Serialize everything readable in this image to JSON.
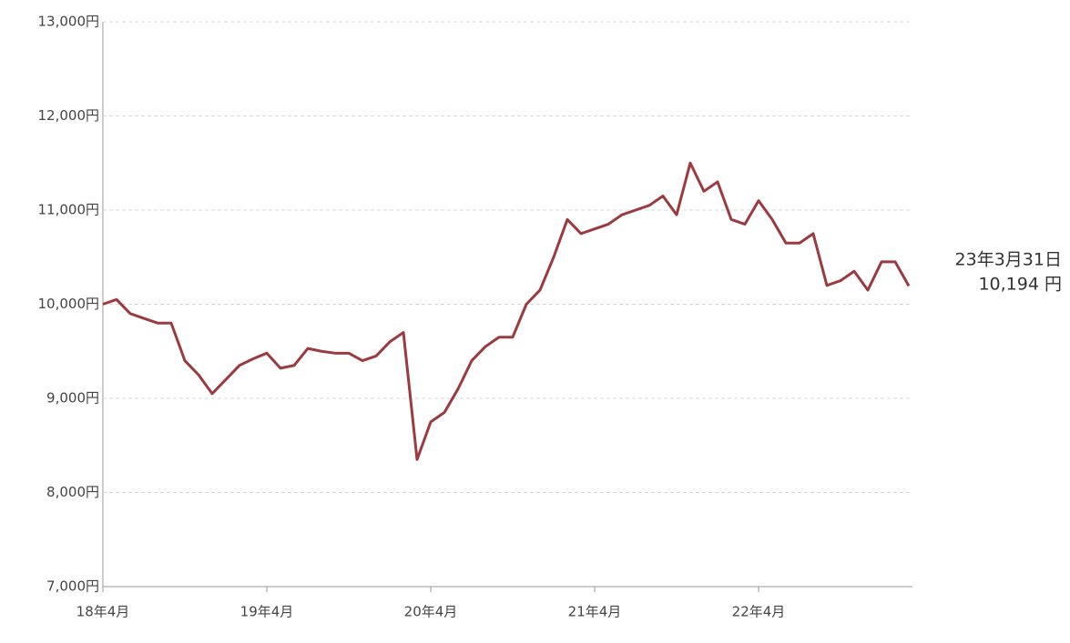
{
  "chart_data": {
    "type": "line",
    "categories": [
      "18年4月",
      null,
      null,
      null,
      null,
      null,
      null,
      null,
      null,
      null,
      null,
      null,
      "19年4月",
      null,
      null,
      null,
      null,
      null,
      null,
      null,
      null,
      null,
      null,
      null,
      "20年4月",
      null,
      null,
      null,
      null,
      null,
      null,
      null,
      null,
      null,
      null,
      null,
      "21年4月",
      null,
      null,
      null,
      null,
      null,
      null,
      null,
      null,
      null,
      null,
      null,
      "22年4月",
      null,
      null,
      null,
      null,
      null,
      null,
      null,
      null,
      null,
      null,
      null
    ],
    "series": [
      {
        "color": "#9b3a3f",
        "values": [
          10000,
          10050,
          9900,
          9850,
          9800,
          9800,
          9400,
          9250,
          9050,
          9200,
          9350,
          9420,
          9480,
          9320,
          9350,
          9530,
          9500,
          9480,
          9480,
          9400,
          9450,
          9600,
          9700,
          8350,
          8750,
          8850,
          9100,
          9400,
          9550,
          9650,
          9650,
          10000,
          10150,
          10500,
          10900,
          10750,
          10800,
          10850,
          10950,
          11000,
          11050,
          11150,
          10950,
          11500,
          11200,
          11300,
          10900,
          10850,
          11100,
          10900,
          10650,
          10650,
          10750,
          10200,
          10250,
          10350,
          10150,
          10450,
          10450,
          10194
        ],
        "value_labels": [
          null,
          null,
          null,
          null,
          null,
          null,
          null,
          null,
          null,
          null,
          null,
          null,
          null,
          null,
          null,
          null,
          null,
          null,
          null,
          null,
          null,
          null,
          null,
          null,
          null,
          null,
          null,
          null,
          null,
          null,
          null,
          null,
          null,
          null,
          null,
          null,
          null,
          null,
          null,
          null,
          null,
          null,
          null,
          null,
          null,
          null,
          null,
          null,
          null,
          null,
          null,
          null,
          null,
          null,
          null,
          null,
          null,
          null,
          null,
          "10,194 円"
        ]
      }
    ],
    "annotation": "23年3月31日",
    "ylim": [
      7000,
      13000
    ],
    "yticks": [
      {
        "value": 7000,
        "label": "7,000円"
      },
      {
        "value": 8000,
        "label": "8,000円"
      },
      {
        "value": 9000,
        "label": "9,000円"
      },
      {
        "value": 10000,
        "label": "10,000円"
      },
      {
        "value": 11000,
        "label": "11,000円"
      },
      {
        "value": 12000,
        "label": "12,000円"
      },
      {
        "value": 13000,
        "label": "13,000円"
      }
    ],
    "grid": true
  }
}
